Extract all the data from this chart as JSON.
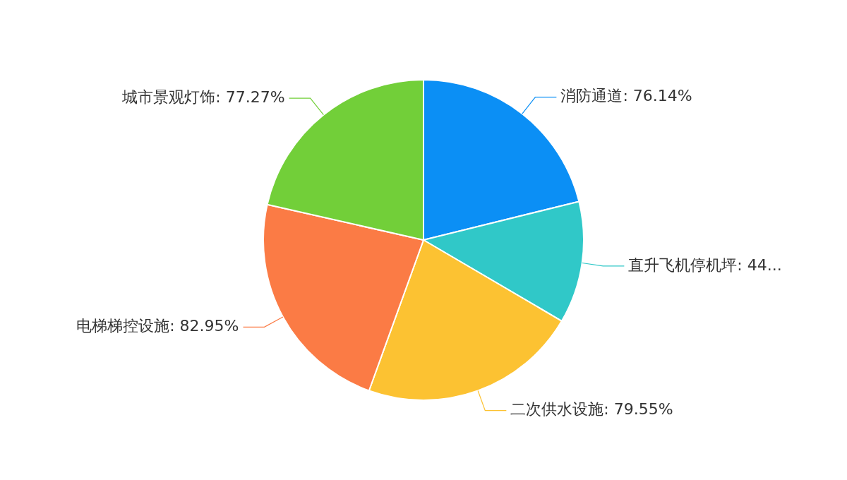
{
  "chart_data": {
    "type": "pie",
    "categories": [
      "消防通道",
      "直升飞机停机坪",
      "二次供水设施",
      "电梯梯控设施",
      "城市景观灯饰"
    ],
    "values": [
      76.14,
      44.32,
      79.55,
      82.95,
      77.27
    ],
    "colors": [
      "#0b8ff5",
      "#30c8c8",
      "#fcc232",
      "#fb7b45",
      "#72cf39"
    ],
    "value_labels": [
      "76.14%",
      "44...",
      "79.55%",
      "82.95%",
      "77.27%"
    ],
    "legend": false
  }
}
